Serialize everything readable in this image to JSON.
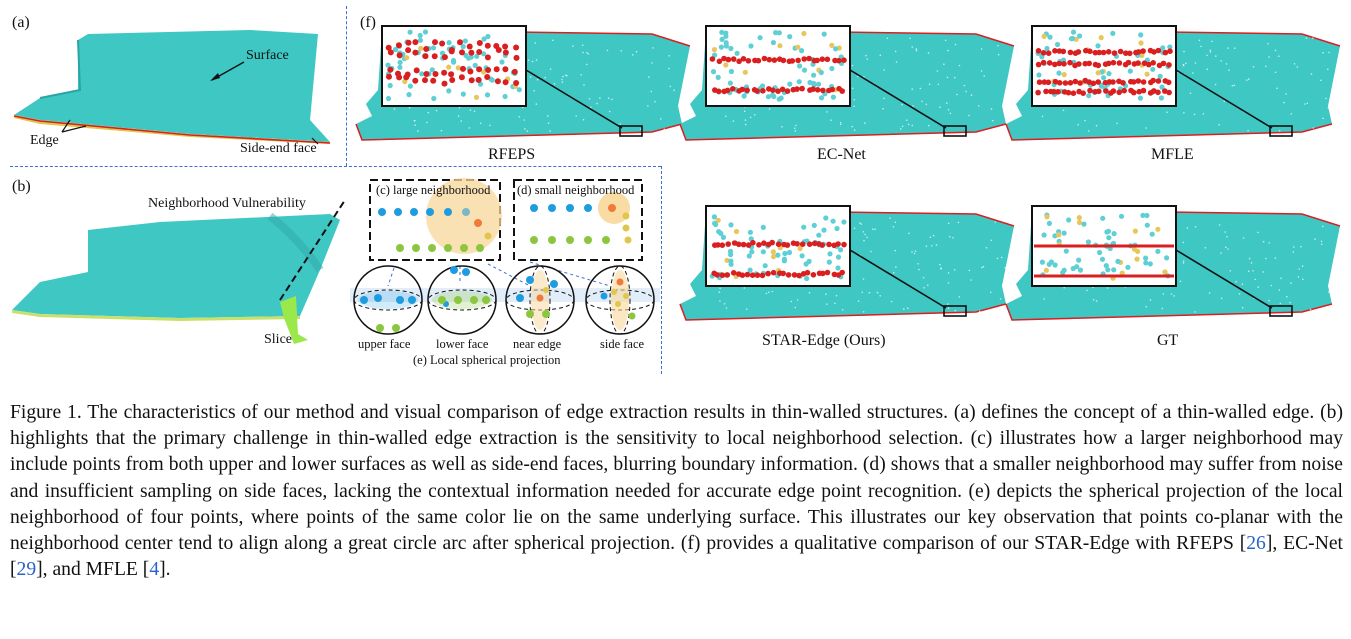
{
  "panel_a": {
    "label": "(a)",
    "surface": "Surface",
    "edge": "Edge",
    "side_end_face": "Side-end face"
  },
  "panel_b": {
    "label": "(b)",
    "neighborhood_vulnerability": "Neighborhood Vulnerability",
    "slice": "Slice"
  },
  "panel_c": {
    "label": "(c) large neighborhood"
  },
  "panel_d": {
    "label": "(d) small neighborhood"
  },
  "panel_e": {
    "upper_face": "upper face",
    "lower_face": "lower face",
    "near_edge": "near edge",
    "side_face": "side face",
    "title": "(e) Local spherical projection"
  },
  "panel_f": {
    "label": "(f)",
    "methods": [
      "RFEPS",
      "EC-Net",
      "MFLE",
      "STAR-Edge (Ours)",
      "GT"
    ]
  },
  "caption": {
    "part1": "Figure 1.   The characteristics of our method and visual comparison of edge extraction results in thin-walled structures.  (a) defines the concept of a thin-walled edge.  (b) highlights that the primary challenge in thin-walled edge extraction is the sensitivity to local neighborhood selection.  (c) illustrates how a larger neighborhood may include points from both upper and lower surfaces as well as side-end faces, blurring boundary information. (d) shows that a smaller neighborhood may suffer from noise and insufficient sampling on side faces, lacking the contextual information needed for accurate edge point recognition. (e) depicts the spherical projection of the local neighborhood of four points, where points of the same color lie on the same underlying surface. This illustrates our key observation that points co-planar with the neighborhood center tend to align along a great circle arc after spherical projection. (f) provides a qualitative comparison of our STAR-Edge with RFEPS [",
    "ref1": "26",
    "part2": "], EC-Net [",
    "ref2": "29",
    "part3": "], and MFLE [",
    "ref3": "4",
    "part4": "]."
  },
  "colors": {
    "teal": "#3fc7c4",
    "edge_red": "#d91f1f",
    "blue_point": "#1f9be0",
    "green_point": "#8cc63f",
    "orange_circle": "#f8d79a",
    "dash_blue": "#3b6fd6"
  }
}
